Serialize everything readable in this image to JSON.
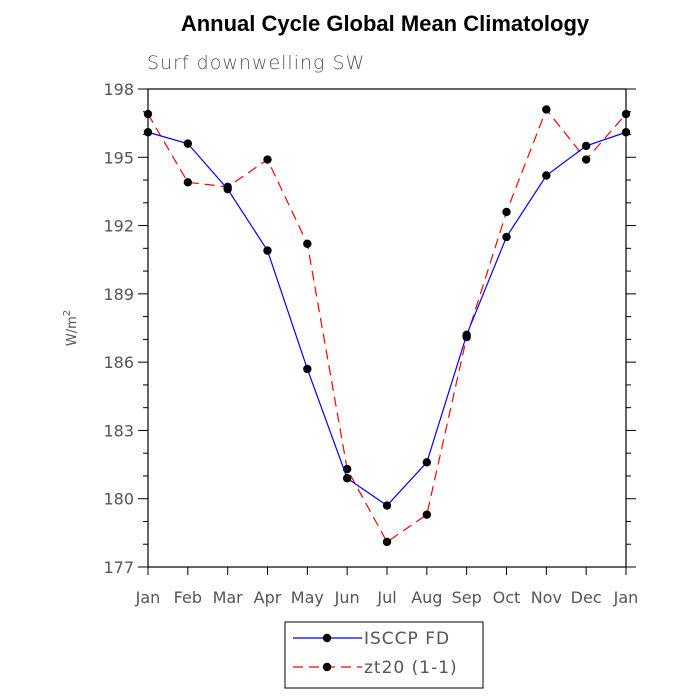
{
  "chart_data": {
    "type": "line",
    "title": "Annual Cycle Global Mean Climatology",
    "subtitle": "Surf downwelling SW",
    "xlabel": "",
    "ylabel": "W/m",
    "ylabel_superscript": "2",
    "categories": [
      "Jan",
      "Feb",
      "Mar",
      "Apr",
      "May",
      "Jun",
      "Jul",
      "Aug",
      "Sep",
      "Oct",
      "Nov",
      "Dec",
      "Jan"
    ],
    "ylim": [
      177,
      198
    ],
    "yticks": [
      177,
      180,
      183,
      186,
      189,
      192,
      195,
      198
    ],
    "series": [
      {
        "name": "ISCCP FD",
        "color": "#0000ff",
        "dash": "solid",
        "values": [
          196.1,
          195.6,
          193.6,
          190.9,
          185.7,
          180.9,
          179.7,
          181.6,
          187.2,
          191.5,
          194.2,
          195.5,
          196.1
        ]
      },
      {
        "name": "zt20 (1-1)",
        "color": "#ff0000",
        "dash": "dashed",
        "values": [
          196.9,
          193.9,
          193.7,
          194.9,
          191.2,
          181.3,
          178.1,
          179.3,
          187.1,
          192.6,
          197.1,
          194.9,
          196.9
        ]
      }
    ],
    "legend_position": "bottom-center"
  }
}
